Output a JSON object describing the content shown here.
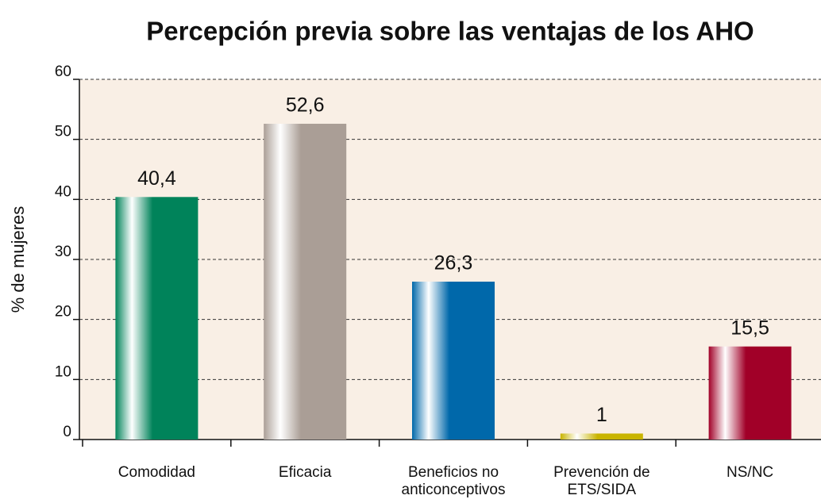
{
  "chart_data": {
    "type": "bar",
    "title": "Percepción previa sobre las ventajas de los AHO",
    "y_label": "% de mujeres",
    "categories": [
      "Comodidad",
      "Eficacia",
      "Beneficios no anticonceptivos",
      "Prevención de ETS/SIDA",
      "NS/NC"
    ],
    "values": [
      40.4,
      52.6,
      26.3,
      1,
      15.5
    ],
    "value_labels": [
      "40,4",
      "52,6",
      "26,3",
      "1",
      "15,5"
    ],
    "colors": [
      "#00835a",
      "#aa9e96",
      "#0068aa",
      "#c9b400",
      "#a10028"
    ],
    "ylim": [
      0,
      60
    ],
    "yticks": [
      0,
      10,
      20,
      30,
      40,
      50,
      60
    ],
    "grid": true
  }
}
